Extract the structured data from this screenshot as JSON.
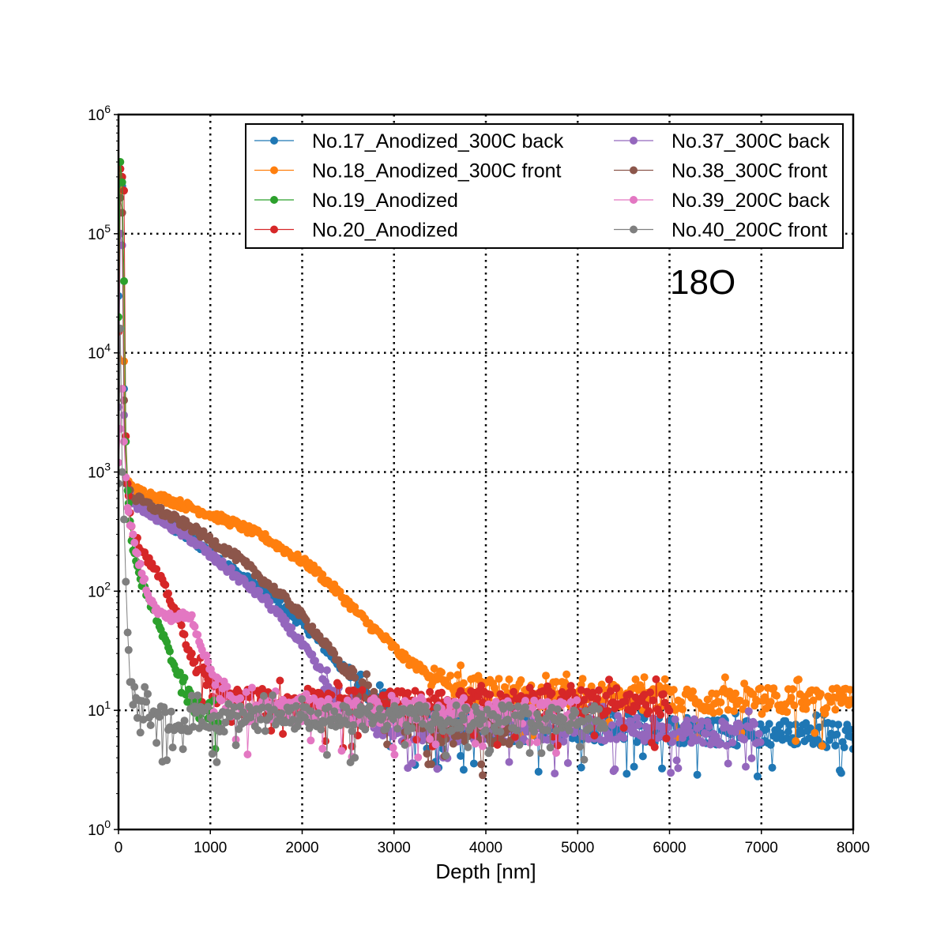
{
  "chart_data": {
    "type": "line",
    "title": "",
    "xlabel": "Depth [nm]",
    "ylabel": "",
    "annotation": "18O",
    "xlim": [
      0,
      8000
    ],
    "ylim": [
      1,
      1000000
    ],
    "yscale": "log",
    "grid": true,
    "legend_position": "top-right",
    "legend_columns": 2,
    "x_ticks": [
      {
        "value": 0,
        "label": "0"
      },
      {
        "value": 1000,
        "label": "1000"
      },
      {
        "value": 2000,
        "label": "2000"
      },
      {
        "value": 3000,
        "label": "3000"
      },
      {
        "value": 4000,
        "label": "4000"
      },
      {
        "value": 5000,
        "label": "5000"
      },
      {
        "value": 6000,
        "label": "6000"
      },
      {
        "value": 7000,
        "label": "7000"
      },
      {
        "value": 8000,
        "label": "8000"
      }
    ],
    "y_ticks": [
      {
        "value": 1,
        "base": "10",
        "exp": "0"
      },
      {
        "value": 10,
        "base": "10",
        "exp": "1"
      },
      {
        "value": 100,
        "base": "10",
        "exp": "2"
      },
      {
        "value": 1000,
        "base": "10",
        "exp": "3"
      },
      {
        "value": 10000,
        "base": "10",
        "exp": "4"
      },
      {
        "value": 100000,
        "base": "10",
        "exp": "5"
      },
      {
        "value": 1000000,
        "base": "10",
        "exp": "6"
      }
    ],
    "series": [
      {
        "name": "No.17_Anodized_300C back",
        "color": "#1f77b4",
        "x": [
          0,
          20,
          40,
          60,
          80,
          150,
          300,
          500,
          800,
          1000,
          1300,
          1600,
          1900,
          2100,
          2300,
          2500,
          2700,
          2900,
          3100,
          3300,
          3600,
          4000,
          4500,
          5000,
          5500,
          6000,
          6500,
          7000,
          7500,
          8000
        ],
        "y": [
          30000,
          350000,
          250000,
          5000,
          800,
          550,
          480,
          380,
          270,
          210,
          140,
          100,
          62,
          45,
          30,
          20,
          14,
          11,
          9,
          8,
          7.5,
          7,
          7,
          7,
          6.8,
          6.8,
          6.5,
          6.5,
          6.5,
          6
        ]
      },
      {
        "name": "No.18_Anodized_300C front",
        "color": "#ff7f0e",
        "x": [
          0,
          20,
          40,
          60,
          80,
          150,
          300,
          500,
          800,
          1000,
          1300,
          1600,
          1900,
          2100,
          2300,
          2500,
          2700,
          2900,
          3100,
          3300,
          3500,
          3700,
          4000,
          4500,
          5000,
          5500,
          6000,
          6500,
          7000,
          7500,
          8000
        ],
        "y": [
          9000,
          300000,
          230000,
          8500,
          900,
          720,
          660,
          600,
          500,
          440,
          360,
          280,
          200,
          160,
          115,
          80,
          55,
          40,
          28,
          22,
          18,
          16,
          15,
          14,
          13.5,
          13,
          12.5,
          12,
          12,
          12,
          12
        ]
      },
      {
        "name": "No.19_Anodized",
        "color": "#2ca02c",
        "x": [
          0,
          20,
          40,
          60,
          80,
          100,
          150,
          200,
          250,
          300,
          400,
          500,
          600,
          700,
          800,
          900,
          1000,
          1100
        ],
        "y": [
          20000,
          400000,
          270000,
          40000,
          1800,
          700,
          230,
          160,
          120,
          95,
          65,
          40,
          25,
          17,
          12,
          10.5,
          10,
          10
        ]
      },
      {
        "name": "No.20_Anodized",
        "color": "#d62728",
        "x": [
          0,
          20,
          40,
          60,
          80,
          100,
          150,
          250,
          350,
          450,
          550,
          650,
          750,
          850,
          950,
          1100,
          1300,
          1500,
          2000,
          2500,
          3000,
          3500,
          4000,
          4500,
          5000,
          5500,
          6000
        ],
        "y": [
          15000,
          350000,
          300000,
          230000,
          2000,
          800,
          300,
          230,
          170,
          130,
          90,
          60,
          35,
          22,
          17,
          14,
          12,
          11.5,
          11.5,
          11.5,
          11.5,
          11.5,
          11.5,
          11.5,
          11.5,
          11.5,
          11.5
        ]
      },
      {
        "name": "No.37_300C back",
        "color": "#9467bd",
        "x": [
          0,
          20,
          40,
          60,
          80,
          150,
          300,
          500,
          800,
          1000,
          1300,
          1600,
          1900,
          2100,
          2300,
          2500,
          2700,
          2900,
          3100,
          3300,
          3600,
          4000,
          4500,
          5000,
          5500,
          6000,
          6500,
          7000
        ],
        "y": [
          3500,
          100000,
          80000,
          3000,
          800,
          560,
          480,
          380,
          270,
          200,
          130,
          85,
          45,
          28,
          16,
          11,
          8.5,
          7.5,
          7,
          7,
          7,
          7,
          7,
          7,
          7,
          7,
          6.5,
          6.5
        ]
      },
      {
        "name": "No.38_300C front",
        "color": "#8c564b",
        "x": [
          0,
          20,
          40,
          60,
          80,
          150,
          300,
          500,
          800,
          1000,
          1300,
          1600,
          1900,
          2100,
          2300,
          2500,
          2700,
          2900,
          3100,
          3400,
          3700,
          4000,
          4300
        ],
        "y": [
          5000,
          200000,
          150000,
          4000,
          800,
          620,
          540,
          450,
          340,
          270,
          190,
          120,
          75,
          50,
          32,
          20,
          13,
          9.5,
          8,
          7,
          6.5,
          6.5,
          6.5
        ]
      },
      {
        "name": "No.39_200C back",
        "color": "#e377c2",
        "x": [
          0,
          20,
          40,
          60,
          80,
          100,
          150,
          200,
          250,
          300,
          350,
          400,
          500,
          600,
          700,
          800,
          900,
          1000,
          1100,
          1200,
          1300,
          1500,
          2000,
          2500,
          3000,
          3500,
          4000,
          4500,
          5000
        ],
        "y": [
          1200,
          2300,
          5000,
          1800,
          900,
          500,
          300,
          200,
          150,
          110,
          85,
          70,
          62,
          60,
          62,
          60,
          35,
          22,
          15,
          12,
          10,
          10,
          10,
          9.5,
          9.5,
          9.5,
          9.5,
          9.5,
          9.5
        ]
      },
      {
        "name": "No.40_200C front",
        "color": "#7f7f7f",
        "x": [
          0,
          20,
          40,
          60,
          80,
          100,
          120,
          150,
          200,
          300,
          500,
          1000,
          1500,
          2000,
          2500,
          3000,
          3500,
          4000,
          4500,
          5000,
          5300
        ],
        "y": [
          800,
          16000,
          1000,
          400,
          120,
          45,
          20,
          14,
          11,
          10,
          8.5,
          8.5,
          8.5,
          8.5,
          8.5,
          8.5,
          8.5,
          8.5,
          8.5,
          8.5,
          8.5
        ]
      }
    ]
  }
}
